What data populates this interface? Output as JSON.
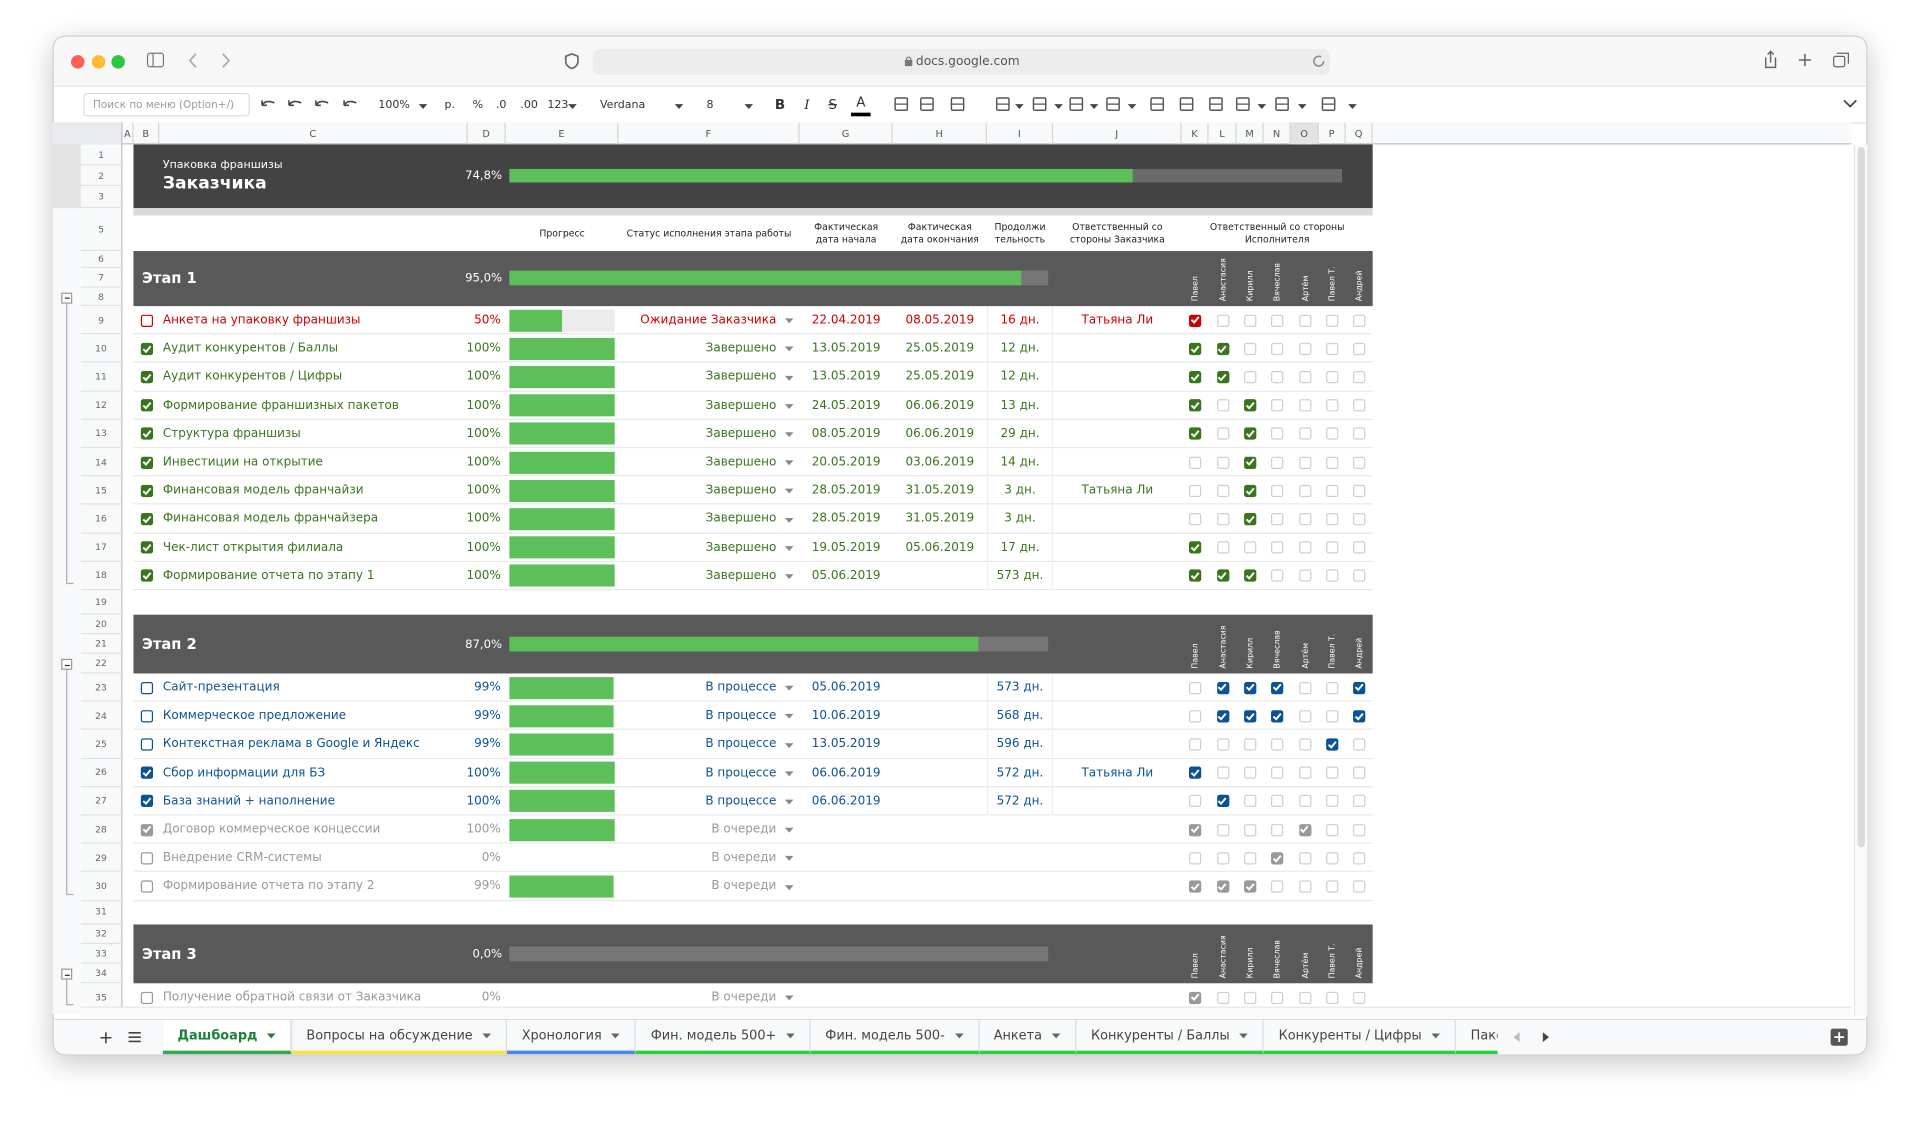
{
  "browser": {
    "url": "docs.google.com"
  },
  "toolbar": {
    "search": "Поиск по меню (Option+/)",
    "zoom": "100%",
    "currency": "р.",
    "percent": "%",
    "decrease_decimal": ".0",
    "increase_decimal": ".00",
    "format": "123",
    "font": "Verdana",
    "font_size": "8",
    "bold": "B",
    "italic": "I",
    "strike": "S",
    "text_color": "A"
  },
  "columns": [
    "A",
    "B",
    "C",
    "D",
    "E",
    "F",
    "G",
    "H",
    "I",
    "J",
    "K",
    "L",
    "M",
    "N",
    "O",
    "P",
    "Q"
  ],
  "rows": [
    1,
    2,
    3,
    5,
    6,
    7,
    8,
    9,
    10,
    11,
    12,
    13,
    14,
    15,
    16,
    17,
    18,
    19,
    20,
    21,
    22,
    23,
    24,
    25,
    26,
    27,
    28,
    29,
    30,
    31,
    32,
    33,
    34,
    35
  ],
  "header": {
    "subtitle": "Упаковка франшизы",
    "title": "Заказчика",
    "progress": 74.8,
    "progress_label": "74,8%"
  },
  "column_headers": {
    "progress": "Прогресс",
    "status": "Статус исполнения этапа работы",
    "start": "Фактическая дата начала",
    "end": "Фактическая дата окончания",
    "duration": "Продолжи тельность",
    "client": "Ответственный со стороны Заказчика",
    "executor": "Ответственный со стороны Исполнителя"
  },
  "executors": [
    "Павел",
    "Анастасия",
    "Кирилл",
    "Вячеслав",
    "Артём",
    "Павел Т.",
    "Андрей"
  ],
  "stages": [
    {
      "name": "Этап 1",
      "progress": 95,
      "progress_label": "95,0%",
      "tasks": [
        {
          "done": false,
          "name": "Анкета на упаковку франшизы",
          "progress": 50,
          "progress_label": "50%",
          "status": "Ожидание Заказчика",
          "start": "22.04.2019",
          "end": "08.05.2019",
          "duration": "16 дн.",
          "client": "Татьяна Ли",
          "color": "#cc0000",
          "executors": [
            true,
            false,
            false,
            false,
            false,
            false,
            false
          ]
        },
        {
          "done": true,
          "name": "Аудит конкурентов / Баллы",
          "progress": 100,
          "progress_label": "100%",
          "status": "Завершено",
          "start": "13.05.2019",
          "end": "25.05.2019",
          "duration": "12 дн.",
          "color": "#38761d",
          "executors": [
            true,
            true,
            false,
            false,
            false,
            false,
            false
          ]
        },
        {
          "done": true,
          "name": "Аудит конкурентов / Цифры",
          "progress": 100,
          "progress_label": "100%",
          "status": "Завершено",
          "start": "13.05.2019",
          "end": "25.05.2019",
          "duration": "12 дн.",
          "color": "#38761d",
          "executors": [
            true,
            true,
            false,
            false,
            false,
            false,
            false
          ]
        },
        {
          "done": true,
          "name": "Формирование франшизных пакетов",
          "progress": 100,
          "progress_label": "100%",
          "status": "Завершено",
          "start": "24.05.2019",
          "end": "06.06.2019",
          "duration": "13 дн.",
          "color": "#38761d",
          "executors": [
            true,
            false,
            true,
            false,
            false,
            false,
            false
          ]
        },
        {
          "done": true,
          "name": "Структура франшизы",
          "progress": 100,
          "progress_label": "100%",
          "status": "Завершено",
          "start": "08.05.2019",
          "end": "06.06.2019",
          "duration": "29 дн.",
          "color": "#38761d",
          "executors": [
            true,
            false,
            true,
            false,
            false,
            false,
            false
          ]
        },
        {
          "done": true,
          "name": "Инвестиции на открытие",
          "progress": 100,
          "progress_label": "100%",
          "status": "Завершено",
          "start": "20.05.2019",
          "end": "03.06.2019",
          "duration": "14 дн.",
          "color": "#38761d",
          "executors": [
            false,
            false,
            true,
            false,
            false,
            false,
            false
          ]
        },
        {
          "done": true,
          "name": "Финансовая модель франчайзи",
          "progress": 100,
          "progress_label": "100%",
          "status": "Завершено",
          "start": "28.05.2019",
          "end": "31.05.2019",
          "duration": "3 дн.",
          "client": "Татьяна Ли",
          "color": "#38761d",
          "executors": [
            false,
            false,
            true,
            false,
            false,
            false,
            false
          ]
        },
        {
          "done": true,
          "name": "Финансовая модель франчайзера",
          "progress": 100,
          "progress_label": "100%",
          "status": "Завершено",
          "start": "28.05.2019",
          "end": "31.05.2019",
          "duration": "3 дн.",
          "color": "#38761d",
          "executors": [
            false,
            false,
            true,
            false,
            false,
            false,
            false
          ]
        },
        {
          "done": true,
          "name": "Чек-лист открытия филиала",
          "progress": 100,
          "progress_label": "100%",
          "status": "Завершено",
          "start": "19.05.2019",
          "end": "05.06.2019",
          "duration": "17 дн.",
          "color": "#38761d",
          "executors": [
            true,
            false,
            false,
            false,
            false,
            false,
            false
          ]
        },
        {
          "done": true,
          "name": "Формирование отчета по этапу 1",
          "progress": 100,
          "progress_label": "100%",
          "status": "Завершено",
          "start": "05.06.2019",
          "duration": "573 дн.",
          "color": "#38761d",
          "executors": [
            true,
            true,
            true,
            false,
            false,
            false,
            false
          ]
        }
      ]
    },
    {
      "name": "Этап 2",
      "progress": 87,
      "progress_label": "87,0%",
      "tasks": [
        {
          "done": false,
          "name": "Сайт-презентация",
          "progress": 99,
          "progress_label": "99%",
          "status": "В процессе",
          "start": "05.06.2019",
          "duration": "573 дн.",
          "color": "#0b5394",
          "executors": [
            false,
            true,
            true,
            true,
            false,
            false,
            true
          ]
        },
        {
          "done": false,
          "name": "Коммерческое предложение",
          "progress": 99,
          "progress_label": "99%",
          "status": "В процессе",
          "start": "10.06.2019",
          "duration": "568 дн.",
          "color": "#0b5394",
          "executors": [
            false,
            true,
            true,
            true,
            false,
            false,
            true
          ]
        },
        {
          "done": false,
          "name": "Контекстная реклама в Google и Яндекс",
          "progress": 99,
          "progress_label": "99%",
          "status": "В процессе",
          "start": "13.05.2019",
          "duration": "596 дн.",
          "color": "#0b5394",
          "executors": [
            false,
            false,
            false,
            false,
            false,
            true,
            false
          ]
        },
        {
          "done": true,
          "name": "Сбор информации для БЗ",
          "progress": 100,
          "progress_label": "100%",
          "status": "В процессе",
          "start": "06.06.2019",
          "duration": "572 дн.",
          "client": "Татьяна Ли",
          "color": "#0b5394",
          "executors": [
            true,
            false,
            false,
            false,
            false,
            false,
            false
          ]
        },
        {
          "done": true,
          "name": "База знаний + наполнение",
          "progress": 100,
          "progress_label": "100%",
          "status": "В процессе",
          "start": "06.06.2019",
          "duration": "572 дн.",
          "color": "#0b5394",
          "executors": [
            false,
            true,
            false,
            false,
            false,
            false,
            false
          ]
        },
        {
          "done": true,
          "name": "Договор коммерческое концессии",
          "progress": 100,
          "progress_label": "100%",
          "status": "В очереди",
          "color": "#999999",
          "executors": [
            true,
            false,
            false,
            false,
            true,
            false,
            false
          ]
        },
        {
          "done": false,
          "name": "Внедрение CRM-системы",
          "progress": 0,
          "progress_label": "0%",
          "status": "В очереди",
          "color": "#999999",
          "executors": [
            false,
            false,
            false,
            true,
            false,
            false,
            false
          ]
        },
        {
          "done": false,
          "name": "Формирование отчета по этапу 2",
          "progress": 99,
          "progress_label": "99%",
          "status": "В очереди",
          "color": "#999999",
          "executors": [
            true,
            true,
            true,
            false,
            false,
            false,
            false
          ]
        }
      ]
    },
    {
      "name": "Этап 3",
      "progress": 0,
      "progress_label": "0,0%",
      "tasks": [
        {
          "done": false,
          "name": "Получение обратной связи от Заказчика",
          "progress": 0,
          "progress_label": "0%",
          "status": "В очереди",
          "color": "#999999",
          "executors": [
            true,
            false,
            false,
            false,
            false,
            false,
            false
          ]
        }
      ]
    }
  ],
  "tabs": [
    {
      "name": "Дашбоард",
      "color": "#34a853",
      "active": true
    },
    {
      "name": "Вопросы на обсуждение",
      "color": "#f4e542"
    },
    {
      "name": "Хронология",
      "color": "#4a86e8"
    },
    {
      "name": "Фин. модель 500+",
      "color": "#2ecc40"
    },
    {
      "name": "Фин. модель 500-",
      "color": "#2ecc40"
    },
    {
      "name": "Анкета",
      "color": "#2ecc40"
    },
    {
      "name": "Конкуренты / Баллы",
      "color": "#2ecc40"
    },
    {
      "name": "Конкуренты / Цифры",
      "color": "#2ecc40"
    },
    {
      "name": "Пакеты",
      "color": "#2ecc40"
    }
  ]
}
